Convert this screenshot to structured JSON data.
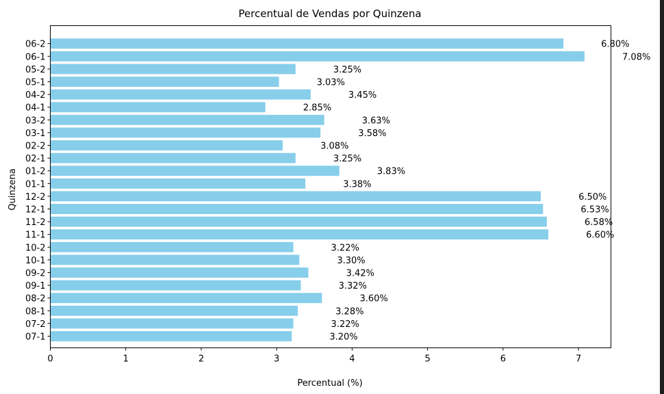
{
  "chart_data": {
    "type": "bar",
    "orientation": "horizontal",
    "title": "Percentual de Vendas por Quinzena",
    "xlabel": "Percentual (%)",
    "ylabel": "Quinzena",
    "xlim": [
      0,
      7.43
    ],
    "xticks": [
      0,
      1,
      2,
      3,
      4,
      5,
      6,
      7
    ],
    "grid": false,
    "bar_color": "#87ceeb",
    "categories": [
      "07-1",
      "07-2",
      "08-1",
      "08-2",
      "09-1",
      "09-2",
      "10-1",
      "10-2",
      "11-1",
      "11-2",
      "12-1",
      "12-2",
      "01-1",
      "01-2",
      "02-1",
      "02-2",
      "03-1",
      "03-2",
      "04-1",
      "04-2",
      "05-1",
      "05-2",
      "06-1",
      "06-2"
    ],
    "values": [
      3.2,
      3.22,
      3.28,
      3.6,
      3.32,
      3.42,
      3.3,
      3.22,
      6.6,
      6.58,
      6.53,
      6.5,
      3.38,
      3.83,
      3.25,
      3.08,
      3.58,
      3.63,
      2.85,
      3.45,
      3.03,
      3.25,
      7.08,
      6.8
    ],
    "data_labels": [
      "3.20%",
      "3.22%",
      "3.28%",
      "3.60%",
      "3.32%",
      "3.42%",
      "3.30%",
      "3.22%",
      "6.60%",
      "6.58%",
      "6.53%",
      "6.50%",
      "3.38%",
      "3.83%",
      "3.25%",
      "3.08%",
      "3.58%",
      "3.63%",
      "2.85%",
      "3.45%",
      "3.03%",
      "3.25%",
      "7.08%",
      "6.80%"
    ]
  }
}
